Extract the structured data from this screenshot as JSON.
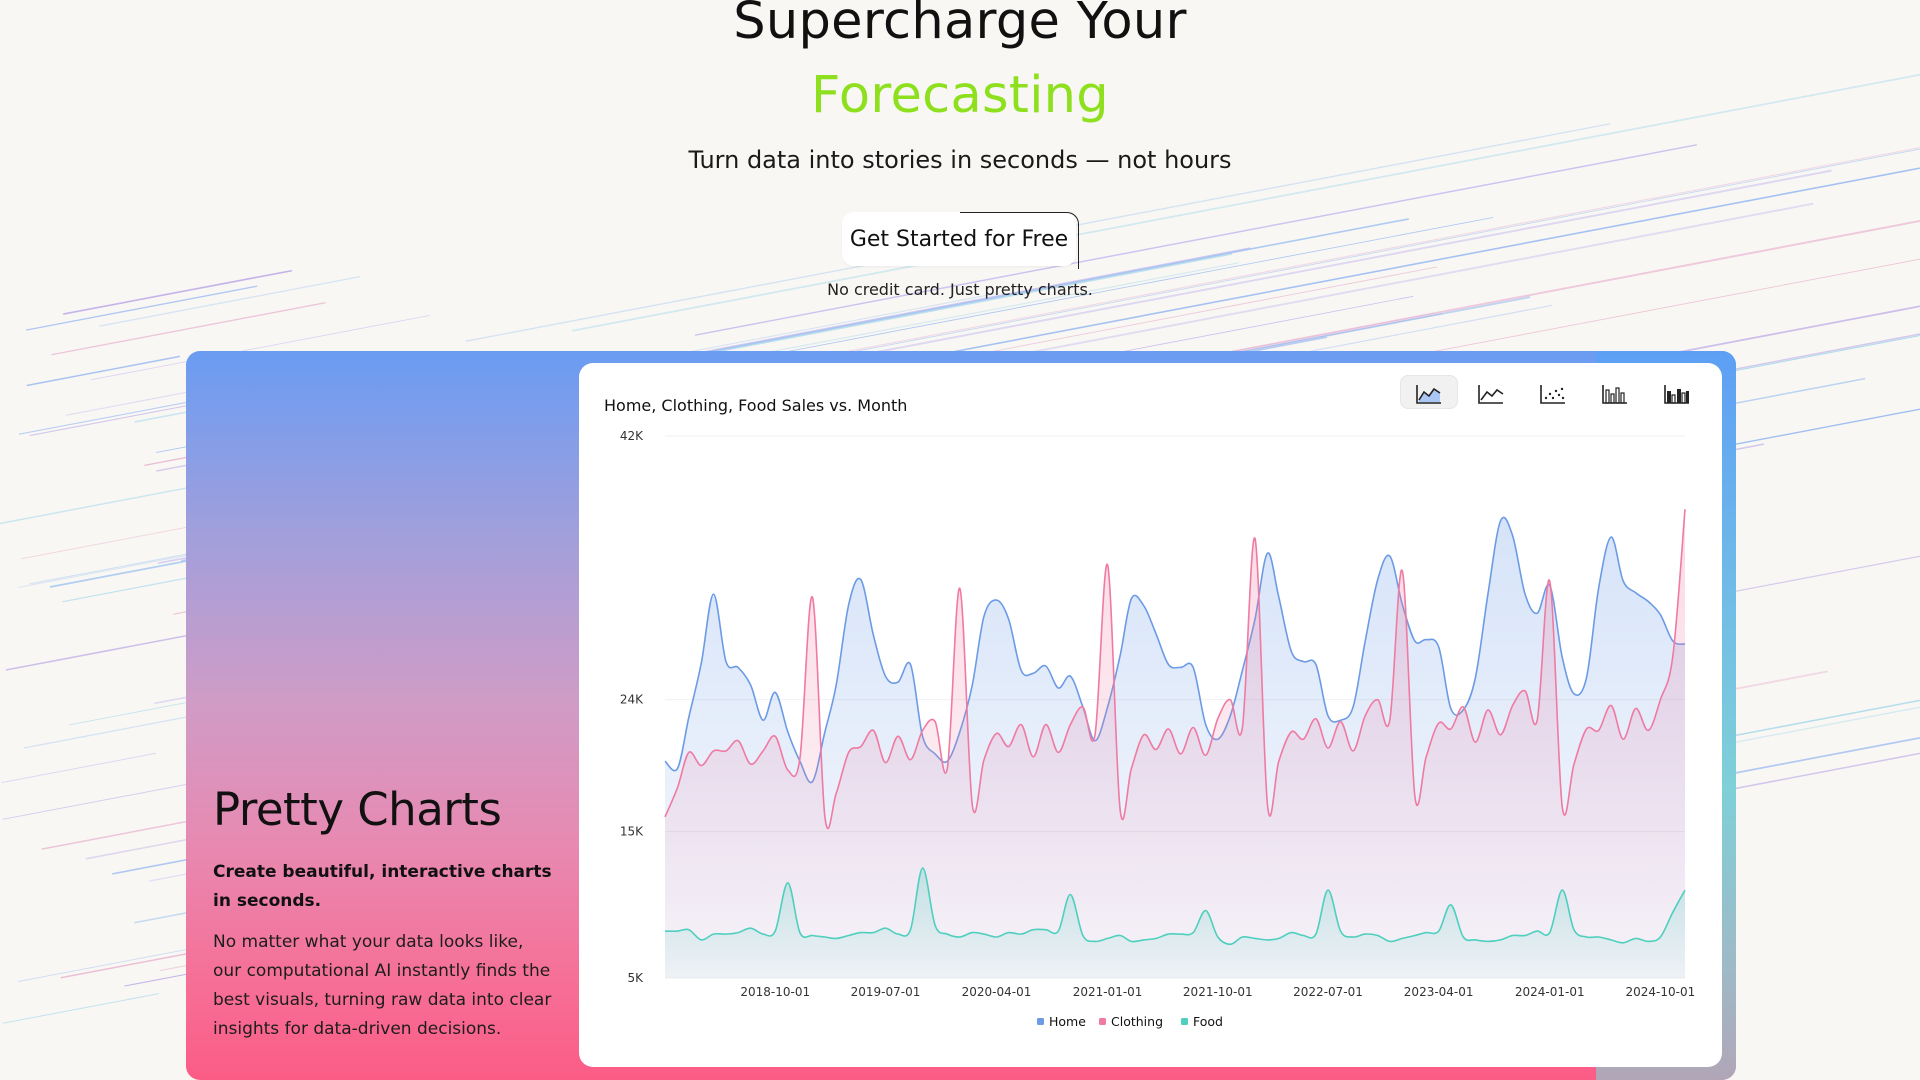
{
  "hero": {
    "title_line1": "Supercharge Your",
    "title_line2": "Forecasting",
    "title_line2_color": "#8ee01e",
    "subtitle": "Turn data into stories in seconds — not hours",
    "cta_label": "Get Started for Free",
    "cta_note": "No credit card. Just pretty charts."
  },
  "feature": {
    "title": "Pretty Charts",
    "lead": "Create beautiful, interactive charts in seconds.",
    "body": "No matter what your data looks like, our computational AI instantly finds the best visuals, turning raw data into clear insights for data-driven decisions."
  },
  "chart_toolbar": {
    "buttons": [
      {
        "icon": "area-chart-icon",
        "active": true
      },
      {
        "icon": "line-chart-icon",
        "active": false
      },
      {
        "icon": "scatter-chart-icon",
        "active": false
      },
      {
        "icon": "bar-chart-icon",
        "active": false
      },
      {
        "icon": "grouped-bar-chart-icon",
        "active": false
      }
    ]
  },
  "colors": {
    "home": "#6c9be6",
    "clothing": "#ef7aa2",
    "food": "#4fcfbe",
    "accent_green": "#8ee01e"
  },
  "chart_data": {
    "type": "area",
    "title": "Home, Clothing, Food Sales vs. Month",
    "xlabel": "",
    "ylabel": "",
    "x_start": "2018-01-01",
    "x_end": "2024-12-01",
    "x_ticks": [
      "2018-10-01",
      "2019-07-01",
      "2020-04-01",
      "2021-01-01",
      "2021-10-01",
      "2022-07-01",
      "2023-04-01",
      "2024-01-01",
      "2024-10-01"
    ],
    "y_ticks": [
      {
        "value": 42000,
        "label": "42K"
      },
      {
        "value": 24000,
        "label": "24K"
      },
      {
        "value": 15000,
        "label": "15K"
      },
      {
        "value": 5000,
        "label": "5K"
      }
    ],
    "ylim": [
      5000,
      42000
    ],
    "legend_position": "bottom",
    "series": [
      {
        "name": "Home",
        "color": "#6c9be6",
        "values": [
          19800,
          19300,
          22800,
          26500,
          31200,
          26600,
          26200,
          25000,
          22600,
          24500,
          21800,
          19800,
          18400,
          21800,
          25000,
          30500,
          32200,
          28400,
          25600,
          25200,
          26400,
          21500,
          20300,
          19800,
          21800,
          25000,
          29700,
          30800,
          29500,
          26000,
          25800,
          26300,
          24800,
          25600,
          23500,
          21200,
          23500,
          27000,
          30900,
          30400,
          28500,
          26400,
          26200,
          26200,
          22300,
          21300,
          22900,
          26000,
          29500,
          34000,
          31000,
          27300,
          26600,
          26400,
          22900,
          22600,
          23500,
          28000,
          32200,
          33800,
          30500,
          28000,
          28100,
          27600,
          23400,
          23300,
          25500,
          31200,
          36200,
          35200,
          31200,
          29900,
          31800,
          26900,
          24400,
          25500,
          31600,
          35100,
          32100,
          31300,
          30700,
          29800,
          28000,
          27800
        ]
      },
      {
        "name": "Clothing",
        "color": "#ef7aa2",
        "values": [
          16000,
          18000,
          20400,
          19500,
          20500,
          20500,
          21200,
          19600,
          20500,
          21500,
          19200,
          20000,
          31000,
          16000,
          17600,
          20400,
          20800,
          21900,
          19700,
          21500,
          19900,
          21900,
          22500,
          19300,
          31600,
          16800,
          19900,
          21700,
          20800,
          22300,
          20100,
          22300,
          20400,
          22300,
          23500,
          21600,
          33200,
          16500,
          19300,
          21600,
          20600,
          22000,
          20300,
          22100,
          20200,
          22700,
          24000,
          22100,
          35000,
          16800,
          19800,
          21800,
          21300,
          22700,
          20700,
          22500,
          20500,
          22900,
          24000,
          22600,
          32800,
          17400,
          20100,
          22400,
          22000,
          23500,
          21100,
          23300,
          21600,
          23600,
          24600,
          22600,
          32100,
          16700,
          19600,
          22000,
          21900,
          23600,
          21300,
          23400,
          21900,
          24000,
          27000,
          37000
        ]
      },
      {
        "name": "Food",
        "color": "#4fcfbe",
        "values": [
          8200,
          8200,
          8300,
          7600,
          8000,
          8000,
          8100,
          8400,
          8000,
          8200,
          11500,
          8100,
          7900,
          7800,
          7700,
          7900,
          8100,
          8100,
          8400,
          8000,
          8300,
          12500,
          8600,
          8000,
          7800,
          8100,
          8000,
          7800,
          8100,
          8000,
          8300,
          8300,
          8200,
          10700,
          7900,
          7500,
          7700,
          7900,
          7500,
          7600,
          7700,
          8000,
          8000,
          8100,
          9600,
          7800,
          7300,
          7800,
          7700,
          7600,
          7700,
          8100,
          7900,
          8000,
          11000,
          8200,
          7800,
          8000,
          7900,
          7500,
          7700,
          7900,
          8100,
          8200,
          10000,
          7800,
          7600,
          7500,
          7600,
          7900,
          7900,
          8200,
          8100,
          11000,
          8300,
          7800,
          7800,
          7600,
          7400,
          7700,
          7500,
          7800,
          9500,
          11000
        ]
      }
    ]
  }
}
